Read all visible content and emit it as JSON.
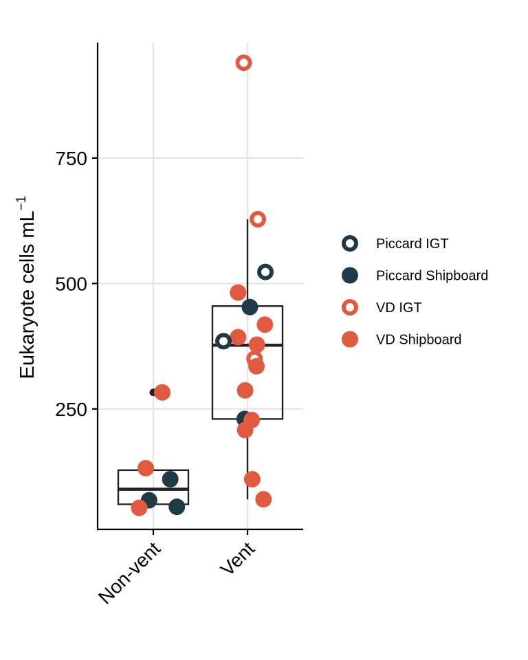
{
  "chart_data": {
    "type": "boxplot",
    "ylabel": "Eukaryote cells  mL",
    "ylabel_superscript": "−1",
    "categories": [
      "Non-vent",
      "Vent"
    ],
    "y_ticks": [
      "250",
      "500",
      "750"
    ],
    "y_tick_values": [
      250,
      500,
      750
    ],
    "ylim": [
      10,
      980
    ],
    "grid": true,
    "legend": {
      "position": "right",
      "entries": [
        {
          "label": "Piccard IGT",
          "color": "#1e3a47",
          "style": "ring"
        },
        {
          "label": "Piccard Shipboard",
          "color": "#1e3a47",
          "style": "filled"
        },
        {
          "label": "VD IGT",
          "color": "#e05a40",
          "style": "ring"
        },
        {
          "label": "VD Shipboard",
          "color": "#e05a40",
          "style": "filled"
        }
      ]
    },
    "boxes": [
      {
        "category": "Non-vent",
        "q1": 60,
        "median": 90,
        "q3": 128,
        "whisker_low": 60,
        "whisker_high": 130,
        "outliers": [
          283
        ]
      },
      {
        "category": "Vent",
        "q1": 230,
        "median": 377,
        "q3": 455,
        "whisker_low": 70,
        "whisker_high": 628,
        "outliers": [
          940
        ]
      }
    ],
    "points": [
      {
        "category": "Non-vent",
        "jitter": 0.19,
        "y": 283,
        "group": "VD Shipboard"
      },
      {
        "category": "Non-vent",
        "jitter": -0.16,
        "y": 132,
        "group": "VD Shipboard"
      },
      {
        "category": "Non-vent",
        "jitter": 0.36,
        "y": 110,
        "group": "Piccard Shipboard"
      },
      {
        "category": "Non-vent",
        "jitter": -0.09,
        "y": 68,
        "group": "Piccard Shipboard"
      },
      {
        "category": "Non-vent",
        "jitter": 0.5,
        "y": 55,
        "group": "Piccard Shipboard"
      },
      {
        "category": "Non-vent",
        "jitter": -0.3,
        "y": 53,
        "group": "VD Shipboard"
      },
      {
        "category": "Vent",
        "jitter": -0.08,
        "y": 940,
        "group": "VD IGT"
      },
      {
        "category": "Vent",
        "jitter": 0.22,
        "y": 628,
        "group": "VD IGT"
      },
      {
        "category": "Vent",
        "jitter": 0.38,
        "y": 523,
        "group": "Piccard IGT"
      },
      {
        "category": "Vent",
        "jitter": -0.2,
        "y": 482,
        "group": "VD Shipboard"
      },
      {
        "category": "Vent",
        "jitter": 0.05,
        "y": 453,
        "group": "Piccard Shipboard"
      },
      {
        "category": "Vent",
        "jitter": 0.37,
        "y": 418,
        "group": "VD Shipboard"
      },
      {
        "category": "Vent",
        "jitter": -0.2,
        "y": 393,
        "group": "VD Shipboard"
      },
      {
        "category": "Vent",
        "jitter": -0.51,
        "y": 385,
        "group": "Piccard IGT"
      },
      {
        "category": "Vent",
        "jitter": 0.2,
        "y": 378,
        "group": "VD Shipboard"
      },
      {
        "category": "Vent",
        "jitter": 0.15,
        "y": 350,
        "group": "VD IGT"
      },
      {
        "category": "Vent",
        "jitter": 0.19,
        "y": 335,
        "group": "VD Shipboard"
      },
      {
        "category": "Vent",
        "jitter": -0.05,
        "y": 287,
        "group": "VD Shipboard"
      },
      {
        "category": "Vent",
        "jitter": -0.06,
        "y": 230,
        "group": "Piccard Shipboard"
      },
      {
        "category": "Vent",
        "jitter": 0.09,
        "y": 228,
        "group": "VD Shipboard"
      },
      {
        "category": "Vent",
        "jitter": -0.05,
        "y": 208,
        "group": "VD Shipboard"
      },
      {
        "category": "Vent",
        "jitter": 0.1,
        "y": 110,
        "group": "VD Shipboard"
      },
      {
        "category": "Vent",
        "jitter": 0.34,
        "y": 70,
        "group": "VD Shipboard"
      }
    ]
  }
}
